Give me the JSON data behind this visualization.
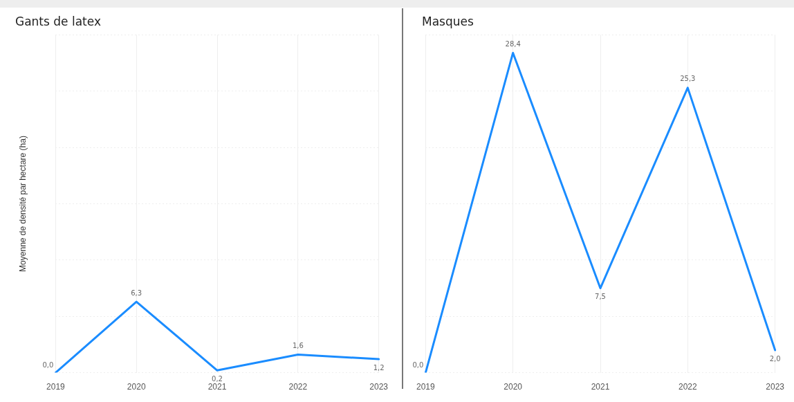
{
  "chart_data": [
    {
      "type": "line",
      "title": "Gants de latex",
      "ylabel": "Moyenne de densité par hectare (ha)",
      "categories": [
        "2019",
        "2020",
        "2021",
        "2022",
        "2023"
      ],
      "values": [
        0.0,
        6.3,
        0.2,
        1.6,
        1.2
      ],
      "value_labels": [
        "0,0",
        "6,3",
        "0,2",
        "1,6",
        "1,2"
      ],
      "color": "#1a8cff",
      "ylim": [
        0,
        30
      ],
      "yticks": [
        {
          "value": 0,
          "label": null
        },
        {
          "value": 5,
          "label": null
        },
        {
          "value": 10,
          "label": null
        },
        {
          "value": 15,
          "label": null
        },
        {
          "value": 20,
          "label": null
        },
        {
          "value": 25,
          "label": null
        },
        {
          "value": 30,
          "label": null
        }
      ],
      "grid": true,
      "tick_labels": "x",
      "marker": "none"
    },
    {
      "type": "line",
      "title": "Masques",
      "categories": [
        "2019",
        "2020",
        "2021",
        "2022",
        "2023"
      ],
      "values": [
        0.0,
        28.4,
        7.5,
        25.3,
        2.0
      ],
      "value_labels": [
        "0,0",
        "28,4",
        "7,5",
        "25,3",
        "2,0"
      ],
      "color": "#1a8cff",
      "ylim": [
        0,
        30
      ],
      "yticks": [
        {
          "value": 0,
          "label": null
        },
        {
          "value": 5,
          "label": null
        },
        {
          "value": 10,
          "label": null
        },
        {
          "value": 15,
          "label": null
        },
        {
          "value": 20,
          "label": null
        },
        {
          "value": 25,
          "label": null
        },
        {
          "value": 30,
          "label": null
        }
      ],
      "grid": true,
      "tick_labels": "x",
      "marker": "none"
    }
  ]
}
